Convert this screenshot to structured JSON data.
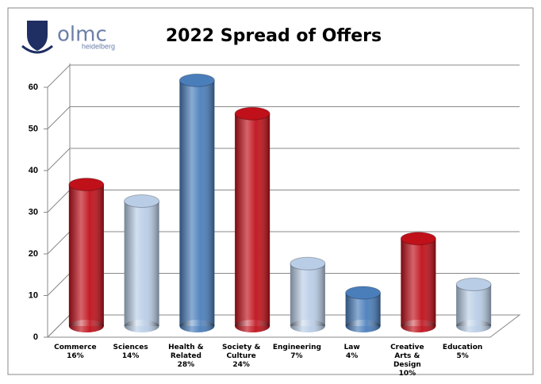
{
  "logo": {
    "name": "olmc",
    "place": "heidelberg"
  },
  "chart_data": {
    "type": "bar3d",
    "title": "2022 Spread of Offers",
    "categories": [
      "Commerce",
      "Sciences",
      "Health & Related",
      "Society & Culture",
      "Engineering",
      "Law",
      "Creative Arts & Design",
      "Education"
    ],
    "percent_labels": [
      "16%",
      "14%",
      "28%",
      "24%",
      "7%",
      "4%",
      "10%",
      "5%"
    ],
    "values": [
      34,
      30,
      59,
      51,
      15,
      8,
      21,
      10
    ],
    "colors": [
      "#c0101a",
      "#b9cde6",
      "#4a7ebb",
      "#c0101a",
      "#b9cde6",
      "#4a7ebb",
      "#c0101a",
      "#b9cde6"
    ],
    "ylim": [
      0,
      60
    ],
    "yticks": [
      0,
      10,
      20,
      30,
      40,
      50,
      60
    ],
    "grid": true
  }
}
